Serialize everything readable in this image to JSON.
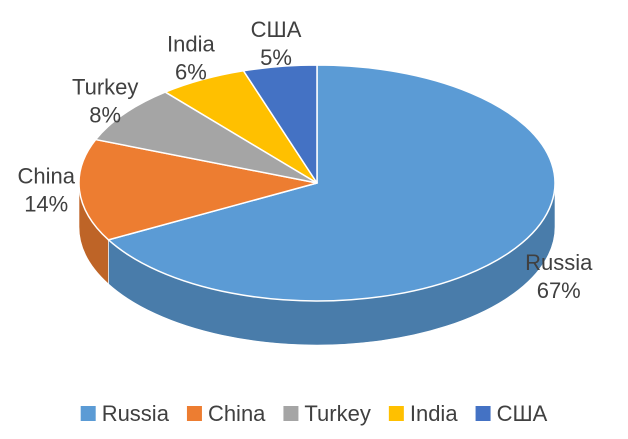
{
  "chart_data": {
    "type": "pie",
    "style": "3d",
    "categories": [
      "Russia",
      "China",
      "Turkey",
      "India",
      "США"
    ],
    "values": [
      67,
      14,
      8,
      6,
      5
    ],
    "value_labels": [
      "67%",
      "14%",
      "8%",
      "6%",
      "5%"
    ],
    "colors": [
      "#5B9BD5",
      "#ED7D31",
      "#A5A5A5",
      "#FFC000",
      "#4472C4"
    ],
    "legend_position": "bottom"
  }
}
